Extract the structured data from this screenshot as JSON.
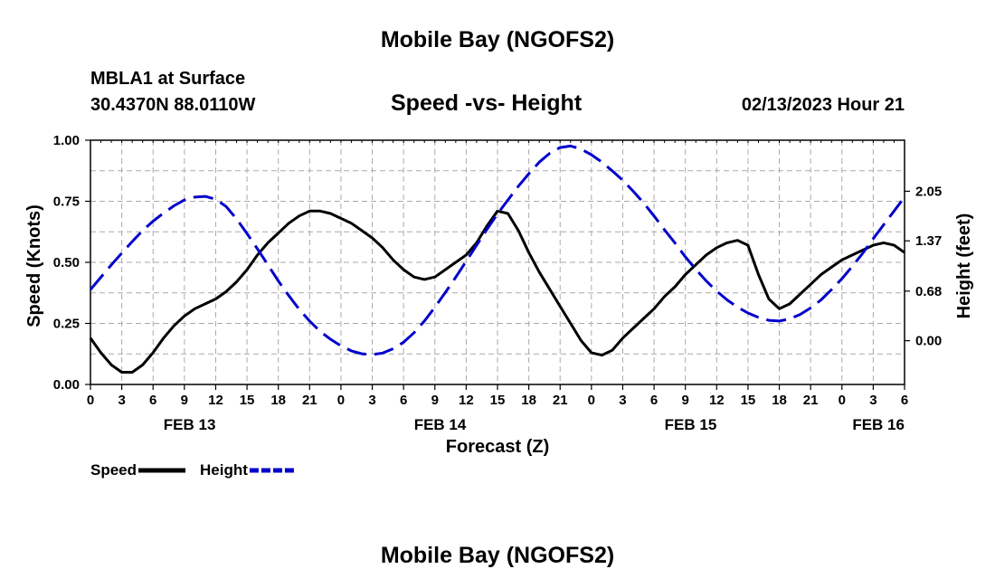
{
  "page": {
    "title": "Mobile Bay (NGOFS2)",
    "station": "MBLA1 at Surface",
    "coords": "30.4370N  88.0110W",
    "datetime": "02/13/2023 Hour 21",
    "bottom_title": "Mobile Bay (NGOFS2)"
  },
  "chart_data": {
    "type": "line",
    "title": "Speed -vs- Height",
    "xlabel": "Forecast (Z)",
    "ylabel": "Speed (Knots)",
    "y2label": "Height (feet)",
    "x_unit": "hours from FEB 13 00Z",
    "xlim": [
      0,
      78
    ],
    "ylim": [
      0,
      1.0
    ],
    "y2lim": [
      -0.6,
      2.75
    ],
    "x_ticks": [
      0,
      3,
      6,
      9,
      12,
      15,
      18,
      21,
      24,
      27,
      30,
      33,
      36,
      39,
      42,
      45,
      48,
      51,
      54,
      57,
      60,
      63,
      66,
      69,
      72,
      75,
      78
    ],
    "x_tick_labels": [
      "0",
      "3",
      "6",
      "9",
      "12",
      "15",
      "18",
      "21",
      "0",
      "3",
      "6",
      "9",
      "12",
      "15",
      "18",
      "21",
      "0",
      "3",
      "6",
      "9",
      "12",
      "15",
      "18",
      "21",
      "0",
      "3",
      "6"
    ],
    "date_labels": [
      {
        "x": 9.5,
        "label": "FEB 13"
      },
      {
        "x": 33.5,
        "label": "FEB 14"
      },
      {
        "x": 57.5,
        "label": "FEB 15"
      },
      {
        "x": 75.5,
        "label": "FEB 16"
      }
    ],
    "y_ticks": [
      0.0,
      0.25,
      0.5,
      0.75,
      1.0
    ],
    "y_tick_labels": [
      "0.00",
      "0.25",
      "0.50",
      "0.75",
      "1.00"
    ],
    "y2_ticks": [
      0.0,
      0.68,
      1.37,
      2.05
    ],
    "y2_tick_labels": [
      "0.00",
      "0.68",
      "1.37",
      "2.05"
    ],
    "grid": true,
    "legend_position": "bottom-left",
    "series": [
      {
        "name": "Speed",
        "axis": "left",
        "color": "#000000",
        "style": "solid",
        "x": [
          0,
          1,
          2,
          3,
          4,
          5,
          6,
          7,
          8,
          9,
          10,
          11,
          12,
          13,
          14,
          15,
          16,
          17,
          18,
          19,
          20,
          21,
          22,
          23,
          24,
          25,
          26,
          27,
          28,
          29,
          30,
          31,
          32,
          33,
          34,
          35,
          36,
          37,
          38,
          39,
          40,
          41,
          42,
          43,
          44,
          45,
          46,
          47,
          48,
          49,
          50,
          51,
          52,
          53,
          54,
          55,
          56,
          57,
          58,
          59,
          60,
          61,
          62,
          63,
          64,
          65,
          66,
          67,
          68,
          69,
          70,
          71,
          72,
          73,
          74,
          75,
          76,
          77,
          78
        ],
        "values": [
          0.19,
          0.13,
          0.08,
          0.05,
          0.05,
          0.08,
          0.13,
          0.19,
          0.24,
          0.28,
          0.31,
          0.33,
          0.35,
          0.38,
          0.42,
          0.47,
          0.53,
          0.58,
          0.62,
          0.66,
          0.69,
          0.71,
          0.71,
          0.7,
          0.68,
          0.66,
          0.63,
          0.6,
          0.56,
          0.51,
          0.47,
          0.44,
          0.43,
          0.44,
          0.47,
          0.5,
          0.53,
          0.58,
          0.65,
          0.71,
          0.7,
          0.63,
          0.54,
          0.46,
          0.39,
          0.32,
          0.25,
          0.18,
          0.13,
          0.12,
          0.14,
          0.19,
          0.23,
          0.27,
          0.31,
          0.36,
          0.4,
          0.45,
          0.49,
          0.53,
          0.56,
          0.58,
          0.59,
          0.57,
          0.45,
          0.35,
          0.31,
          0.33,
          0.37,
          0.41,
          0.45,
          0.48,
          0.51,
          0.53,
          0.55,
          0.57,
          0.58,
          0.57,
          0.54
        ]
      },
      {
        "name": "Height",
        "axis": "right",
        "color": "#0000cc",
        "style": "dashed",
        "x": [
          0,
          1,
          2,
          3,
          4,
          5,
          6,
          7,
          8,
          9,
          10,
          11,
          12,
          13,
          14,
          15,
          16,
          17,
          18,
          19,
          20,
          21,
          22,
          23,
          24,
          25,
          26,
          27,
          28,
          29,
          30,
          31,
          32,
          33,
          34,
          35,
          36,
          37,
          38,
          39,
          40,
          41,
          42,
          43,
          44,
          45,
          46,
          47,
          48,
          49,
          50,
          51,
          52,
          53,
          54,
          55,
          56,
          57,
          58,
          59,
          60,
          61,
          62,
          63,
          64,
          65,
          66,
          67,
          68,
          69,
          70,
          71,
          72,
          73,
          74,
          75,
          76,
          77,
          78
        ],
        "values": [
          0.7,
          0.87,
          1.04,
          1.2,
          1.36,
          1.51,
          1.64,
          1.75,
          1.85,
          1.93,
          1.97,
          1.98,
          1.94,
          1.84,
          1.67,
          1.47,
          1.26,
          1.04,
          0.82,
          0.62,
          0.43,
          0.27,
          0.13,
          0.02,
          -0.07,
          -0.14,
          -0.18,
          -0.19,
          -0.17,
          -0.11,
          -0.02,
          0.11,
          0.27,
          0.46,
          0.66,
          0.87,
          1.09,
          1.31,
          1.53,
          1.74,
          1.93,
          2.12,
          2.29,
          2.45,
          2.57,
          2.65,
          2.67,
          2.63,
          2.55,
          2.45,
          2.33,
          2.2,
          2.05,
          1.89,
          1.71,
          1.52,
          1.34,
          1.15,
          0.98,
          0.82,
          0.68,
          0.56,
          0.46,
          0.38,
          0.32,
          0.28,
          0.27,
          0.3,
          0.36,
          0.45,
          0.56,
          0.7,
          0.85,
          1.02,
          1.2,
          1.4,
          1.59,
          1.78,
          1.97
        ]
      }
    ]
  }
}
